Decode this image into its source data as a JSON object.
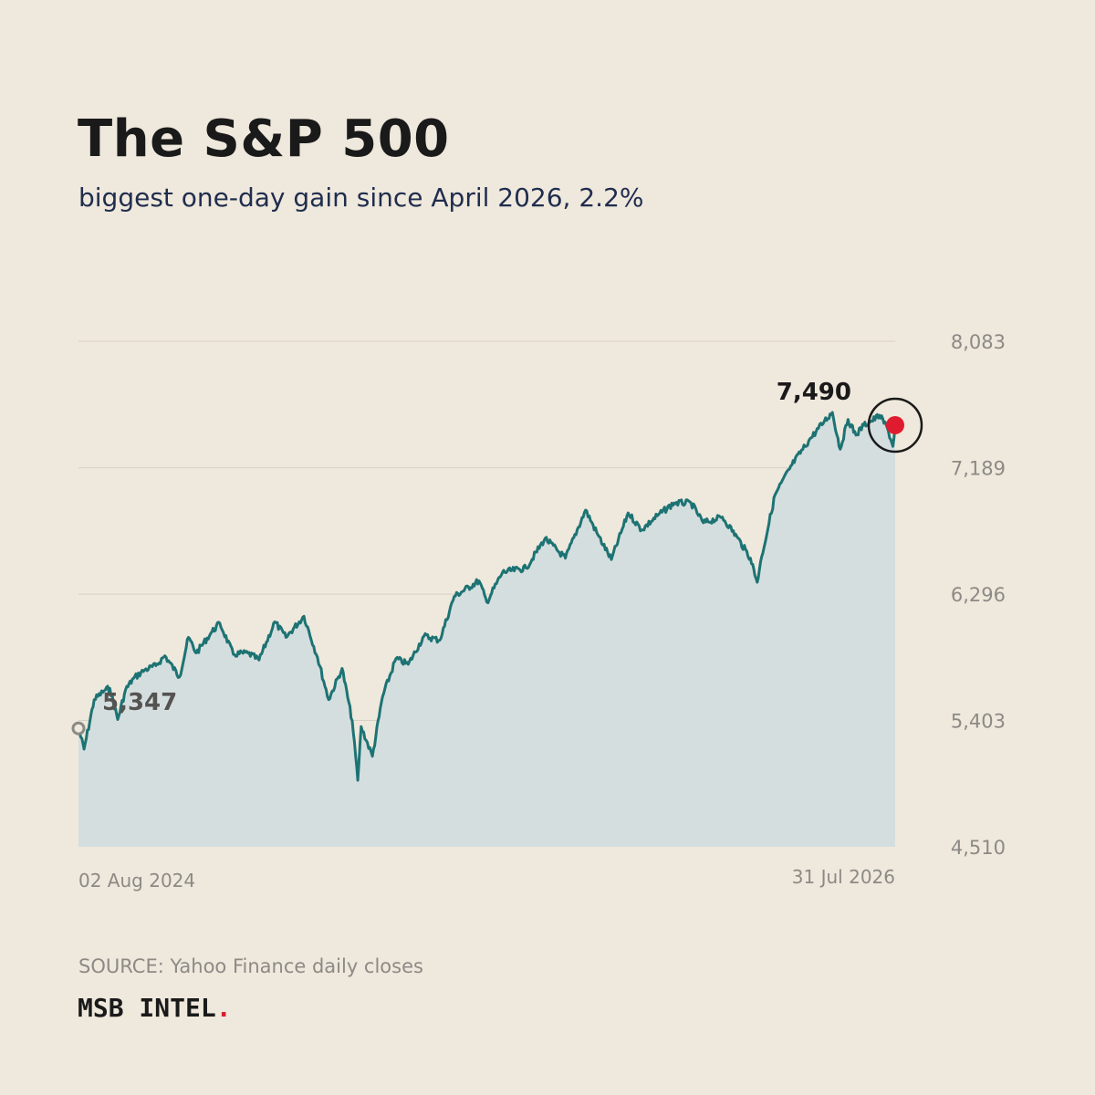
{
  "header": {
    "title": "The S&P 500",
    "subtitle": "biggest one-day gain since April 2026, 2.2%"
  },
  "footer": {
    "source": "SOURCE: Yahoo Finance daily closes",
    "brand": "MSB INTEL",
    "brand_dot": "."
  },
  "colors": {
    "background": "#efe8dc",
    "line": "#1d7373",
    "area": "#d5dedf",
    "grid": "#d8d0c4",
    "tick_text": "#8c8a86",
    "start_marker": "#8c8a86",
    "end_marker": "#e01b2f",
    "highlight_ring": "#1a1a1a",
    "brand_dot": "#d81e2c"
  },
  "chart_data": {
    "type": "area",
    "title": "The S&P 500",
    "subtitle": "biggest one-day gain since April 2026, 2.2%",
    "xlabel": "",
    "ylabel": "",
    "x_range": [
      "2024-08-02",
      "2026-07-31"
    ],
    "x_tick_labels": [
      "02 Aug 2024",
      "31 Jul 2026"
    ],
    "ylim": [
      4510,
      8083
    ],
    "y_ticks": [
      {
        "value": 8083,
        "label": "8,083"
      },
      {
        "value": 7189,
        "label": "7,189"
      },
      {
        "value": 6296,
        "label": "6,296"
      },
      {
        "value": 5403,
        "label": "5,403"
      },
      {
        "value": 4510,
        "label": "4,510"
      }
    ],
    "grid": true,
    "start_label": "5,347",
    "end_label": "7,490",
    "start_value": 5347,
    "end_value": 7490,
    "series": [
      {
        "points": [
          [
            "2024-08-02",
            5347
          ],
          [
            "2024-08-07",
            5200
          ],
          [
            "2024-08-16",
            5550
          ],
          [
            "2024-08-26",
            5620
          ],
          [
            "2024-08-30",
            5630
          ],
          [
            "2024-09-06",
            5410
          ],
          [
            "2024-09-13",
            5620
          ],
          [
            "2024-09-20",
            5700
          ],
          [
            "2024-09-30",
            5760
          ],
          [
            "2024-10-10",
            5790
          ],
          [
            "2024-10-18",
            5860
          ],
          [
            "2024-10-31",
            5710
          ],
          [
            "2024-11-08",
            5990
          ],
          [
            "2024-11-15",
            5880
          ],
          [
            "2024-11-29",
            6030
          ],
          [
            "2024-12-06",
            6090
          ],
          [
            "2024-12-18",
            5870
          ],
          [
            "2024-12-31",
            5880
          ],
          [
            "2025-01-10",
            5830
          ],
          [
            "2025-01-24",
            6100
          ],
          [
            "2025-02-03",
            5990
          ],
          [
            "2025-02-19",
            6140
          ],
          [
            "2025-03-03",
            5850
          ],
          [
            "2025-03-13",
            5550
          ],
          [
            "2025-03-25",
            5770
          ],
          [
            "2025-04-03",
            5400
          ],
          [
            "2025-04-08",
            4980
          ],
          [
            "2025-04-11",
            5360
          ],
          [
            "2025-04-21",
            5150
          ],
          [
            "2025-04-30",
            5570
          ],
          [
            "2025-05-12",
            5840
          ],
          [
            "2025-05-23",
            5800
          ],
          [
            "2025-06-06",
            6000
          ],
          [
            "2025-06-20",
            5970
          ],
          [
            "2025-07-03",
            6280
          ],
          [
            "2025-07-25",
            6390
          ],
          [
            "2025-08-01",
            6240
          ],
          [
            "2025-08-15",
            6450
          ],
          [
            "2025-09-05",
            6480
          ],
          [
            "2025-09-22",
            6690
          ],
          [
            "2025-10-10",
            6550
          ],
          [
            "2025-10-28",
            6890
          ],
          [
            "2025-11-07",
            6730
          ],
          [
            "2025-11-20",
            6540
          ],
          [
            "2025-12-05",
            6870
          ],
          [
            "2025-12-17",
            6750
          ],
          [
            "2025-12-31",
            6850
          ],
          [
            "2026-01-15",
            6940
          ],
          [
            "2026-01-30",
            6940
          ],
          [
            "2026-02-10",
            6800
          ],
          [
            "2026-02-27",
            6840
          ],
          [
            "2026-03-12",
            6700
          ],
          [
            "2026-03-24",
            6550
          ],
          [
            "2026-03-30",
            6380
          ],
          [
            "2026-04-03",
            6560
          ],
          [
            "2026-04-15",
            7000
          ],
          [
            "2026-04-30",
            7210
          ],
          [
            "2026-05-15",
            7380
          ],
          [
            "2026-05-29",
            7520
          ],
          [
            "2026-06-05",
            7580
          ],
          [
            "2026-06-12",
            7320
          ],
          [
            "2026-06-19",
            7530
          ],
          [
            "2026-06-26",
            7420
          ],
          [
            "2026-07-03",
            7490
          ],
          [
            "2026-07-10",
            7520
          ],
          [
            "2026-07-17",
            7560
          ],
          [
            "2026-07-24",
            7470
          ],
          [
            "2026-07-29",
            7340
          ],
          [
            "2026-07-31",
            7490
          ]
        ]
      }
    ]
  }
}
